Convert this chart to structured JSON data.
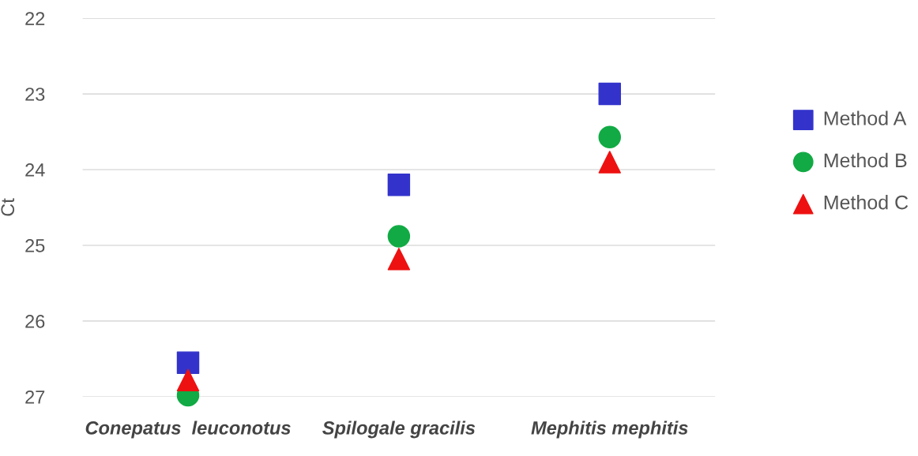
{
  "chart_data": {
    "type": "scatter",
    "ylabel": "Ct",
    "categories": [
      "Conepatus  leuconotus",
      "Spilogale gracilis",
      "Mephitis mephitis"
    ],
    "series": [
      {
        "name": "Method A",
        "color": "#3333cc",
        "marker": "square",
        "values": [
          26.55,
          24.2,
          23.0
        ]
      },
      {
        "name": "Method B",
        "color": "#11aa44",
        "marker": "circle",
        "values": [
          26.98,
          24.88,
          23.57
        ]
      },
      {
        "name": "Method C",
        "color": "#ee1111",
        "marker": "triangle",
        "values": [
          26.78,
          25.18,
          23.9
        ]
      }
    ],
    "ylim": [
      27,
      22
    ],
    "yticks": [
      22,
      23,
      24,
      25,
      26,
      27
    ],
    "grid": "y",
    "legend": "right"
  }
}
